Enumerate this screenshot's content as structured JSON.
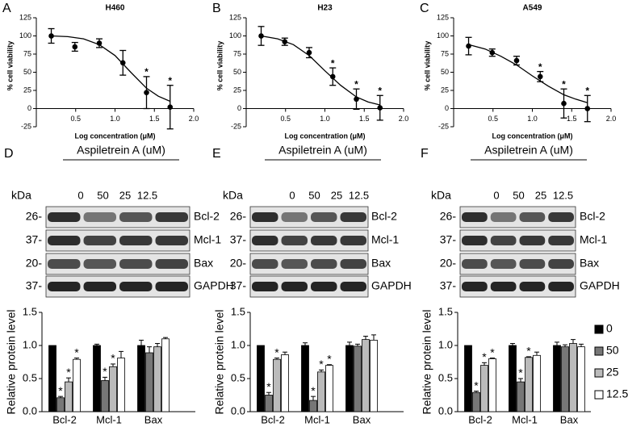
{
  "chart_data": [
    {
      "type": "scatter",
      "panel": "A",
      "title": "H460",
      "xlabel": "Log concentration (μM)",
      "ylabel": "% cell viability",
      "x": [
        0.19,
        0.49,
        0.8,
        1.1,
        1.4,
        1.7
      ],
      "values": [
        100,
        85,
        90,
        63,
        22,
        2
      ],
      "errors": [
        10,
        6,
        6,
        17,
        22,
        30
      ],
      "significance": [
        null,
        null,
        null,
        null,
        "*",
        "*"
      ],
      "curve": {
        "x": [
          0.19,
          0.4,
          0.6,
          0.8,
          1.0,
          1.2,
          1.4,
          1.55,
          1.7
        ],
        "values": [
          100,
          99,
          96,
          88,
          73,
          50,
          28,
          17,
          10
        ]
      },
      "xlim": [
        0,
        2
      ],
      "xticks": [
        0.5,
        {
          "value": 1,
          "label": "1.0"
        },
        1.5,
        {
          "value": 2,
          "label": "2.0"
        }
      ],
      "ylim": [
        -25,
        125
      ],
      "yticks": [
        -25,
        0,
        25,
        50,
        75,
        100,
        125
      ],
      "color": "#000000"
    },
    {
      "type": "scatter",
      "panel": "B",
      "title": "H23",
      "xlabel": "Log concentration (μM)",
      "ylabel": "% cell viability",
      "x": [
        0.19,
        0.49,
        0.8,
        1.1,
        1.4,
        1.7
      ],
      "values": [
        100,
        92,
        77,
        44,
        13,
        1
      ],
      "errors": [
        13,
        5,
        7,
        12,
        14,
        17
      ],
      "significance": [
        null,
        null,
        null,
        "*",
        "*",
        "*"
      ],
      "curve": {
        "x": [
          0.19,
          0.4,
          0.6,
          0.8,
          1.0,
          1.2,
          1.4,
          1.55,
          1.7
        ],
        "values": [
          100,
          96,
          88,
          73,
          52,
          32,
          16,
          9,
          5
        ]
      },
      "xlim": [
        0,
        2
      ],
      "xticks": [
        0.5,
        {
          "value": 1,
          "label": "1.0"
        },
        1.5,
        {
          "value": 2,
          "label": "2.0"
        }
      ],
      "ylim": [
        -25,
        125
      ],
      "yticks": [
        -25,
        0,
        25,
        50,
        75,
        100,
        125
      ],
      "color": "#000000"
    },
    {
      "type": "scatter",
      "panel": "C",
      "title": "A549",
      "xlabel": "Log concentration (μM)",
      "ylabel": "% cell viability",
      "x": [
        0.19,
        0.49,
        0.8,
        1.1,
        1.4,
        1.7
      ],
      "values": [
        86,
        77,
        66,
        44,
        7,
        0
      ],
      "errors": [
        12,
        5,
        6,
        7,
        20,
        18
      ],
      "significance": [
        null,
        null,
        null,
        "*",
        "*",
        "*"
      ],
      "curve": {
        "x": [
          0.19,
          0.4,
          0.6,
          0.8,
          1.0,
          1.2,
          1.4,
          1.55,
          1.7
        ],
        "values": [
          88,
          82,
          72,
          60,
          45,
          31,
          19,
          13,
          8
        ]
      },
      "xlim": [
        0,
        2
      ],
      "xticks": [
        0.5,
        {
          "value": 1,
          "label": "1.0"
        },
        1.5,
        {
          "value": 2,
          "label": "2.0"
        }
      ],
      "ylim": [
        -25,
        125
      ],
      "yticks": [
        -25,
        0,
        25,
        50,
        75,
        100,
        125
      ],
      "color": "#000000"
    },
    {
      "type": "bar",
      "ylabel": "Relative protein level",
      "categories": [
        "Bcl-2",
        "Mcl-1",
        "Bax"
      ],
      "ylim": [
        0,
        1.5
      ],
      "yticks": [
        {
          "value": 0,
          "label": "0.0"
        },
        0.5,
        {
          "value": 1,
          "label": "1.0"
        },
        1.5
      ],
      "series": [
        {
          "color": "#000000",
          "values": [
            1.0,
            1.0,
            1.0
          ],
          "errors": [
            0,
            0.02,
            0.08
          ],
          "significance": [
            null,
            null,
            null
          ]
        },
        {
          "color": "#777777",
          "values": [
            0.21,
            0.47,
            0.89
          ],
          "errors": [
            0.02,
            0.05,
            0.09
          ],
          "significance": [
            "*",
            "*",
            null
          ]
        },
        {
          "color": "#bbbbbb",
          "values": [
            0.45,
            0.68,
            0.98
          ],
          "errors": [
            0.06,
            0.04,
            0.05
          ],
          "significance": [
            "*",
            "*",
            null
          ]
        },
        {
          "color": "#ffffff",
          "values": [
            0.79,
            0.81,
            1.1
          ],
          "errors": [
            0.02,
            0.1,
            0.02
          ],
          "significance": [
            "*",
            null,
            null
          ]
        }
      ]
    },
    {
      "type": "bar",
      "ylabel": "Relative protein level",
      "categories": [
        "Bcl-2",
        "Mcl-1",
        "Bax"
      ],
      "ylim": [
        0,
        1.5
      ],
      "yticks": [
        {
          "value": 0,
          "label": "0.0"
        },
        0.5,
        {
          "value": 1,
          "label": "1.0"
        },
        1.5
      ],
      "series": [
        {
          "color": "#000000",
          "values": [
            1.0,
            1.0,
            1.0
          ],
          "errors": [
            0,
            0.04,
            0.05
          ],
          "significance": [
            null,
            null,
            null
          ]
        },
        {
          "color": "#777777",
          "values": [
            0.25,
            0.17,
            0.99
          ],
          "errors": [
            0.04,
            0.06,
            0.03
          ],
          "significance": [
            "*",
            "*",
            null
          ]
        },
        {
          "color": "#bbbbbb",
          "values": [
            0.79,
            0.6,
            1.09
          ],
          "errors": [
            0.02,
            0.03,
            0.05
          ],
          "significance": [
            "*",
            "*",
            null
          ]
        },
        {
          "color": "#ffffff",
          "values": [
            0.86,
            0.7,
            1.08
          ],
          "errors": [
            0.04,
            0.01,
            0.08
          ],
          "significance": [
            null,
            "*",
            null
          ]
        }
      ]
    },
    {
      "type": "bar",
      "ylabel": "Relative protein level",
      "categories": [
        "Bcl-2",
        "Mcl-1",
        "Bax"
      ],
      "legend": "right",
      "ylim": [
        0,
        1.5
      ],
      "yticks": [
        {
          "value": 0,
          "label": "0.0"
        },
        0.5,
        {
          "value": 1,
          "label": "1.0"
        },
        1.5
      ],
      "series": [
        {
          "name": "0",
          "color": "#000000",
          "values": [
            1.0,
            1.0,
            1.0
          ],
          "errors": [
            0,
            0.03,
            0.05
          ],
          "significance": [
            null,
            null,
            null
          ]
        },
        {
          "name": "50",
          "color": "#777777",
          "values": [
            0.29,
            0.45,
            0.98
          ],
          "errors": [
            0.02,
            0.05,
            0.03
          ],
          "significance": [
            "*",
            "*",
            null
          ]
        },
        {
          "name": "25",
          "color": "#bbbbbb",
          "values": [
            0.7,
            0.82,
            1.03
          ],
          "errors": [
            0.04,
            0.01,
            0.06
          ],
          "significance": [
            "*",
            "*",
            null
          ]
        },
        {
          "name": "12.5",
          "color": "#ffffff",
          "values": [
            0.8,
            0.85,
            0.98
          ],
          "errors": [
            0.01,
            0.05,
            0.04
          ],
          "significance": [
            "*",
            null,
            null
          ]
        }
      ]
    }
  ],
  "blots": [
    {
      "panel": "D",
      "treatment": "Aspiletrein A (uM)",
      "unit": "kDa",
      "lanes": [
        "0",
        "50",
        "25",
        "12.5"
      ],
      "rows": [
        {
          "marker": "26-",
          "protein": "Bcl-2"
        },
        {
          "marker": "37-",
          "protein": "Mcl-1"
        },
        {
          "marker": "20-",
          "protein": "Bax"
        },
        {
          "marker": "37-",
          "protein": "GAPDH"
        }
      ]
    },
    {
      "panel": "E",
      "treatment": "Aspiletrein A (uM)",
      "unit": "kDa",
      "lanes": [
        "0",
        "50",
        "25",
        "12.5"
      ],
      "rows": [
        {
          "marker": "26-",
          "protein": "Bcl-2"
        },
        {
          "marker": "37-",
          "protein": "Mcl-1"
        },
        {
          "marker": "20-",
          "protein": "Bax"
        },
        {
          "marker": "37-",
          "protein": "GAPDH"
        }
      ]
    },
    {
      "panel": "F",
      "treatment": "Aspiletrein A (uM)",
      "unit": "kDa",
      "lanes": [
        "0",
        "50",
        "25",
        "12.5"
      ],
      "rows": [
        {
          "marker": "26-",
          "protein": "Bcl-2"
        },
        {
          "marker": "37-",
          "protein": "Mcl-1"
        },
        {
          "marker": "20-",
          "protein": "Bax"
        },
        {
          "marker": "37-",
          "protein": "GAPDH"
        }
      ]
    }
  ]
}
